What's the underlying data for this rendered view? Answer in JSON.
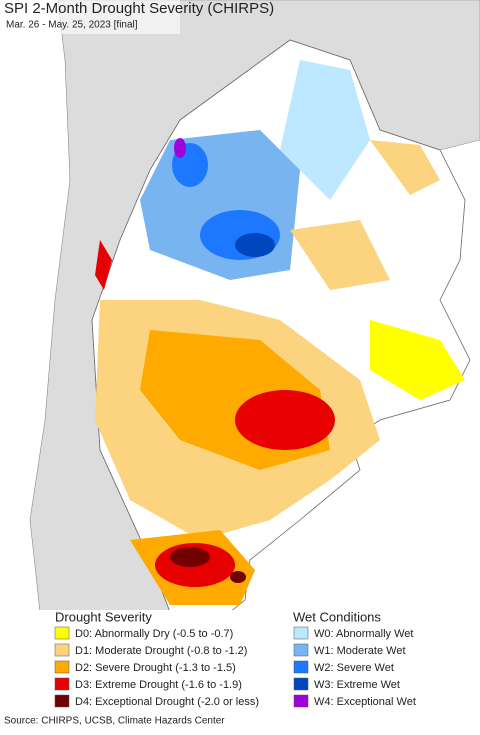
{
  "header": {
    "title": "SPI 2-Month Drought Severity (CHIRPS)",
    "subtitle": "Mar. 26 - May. 25, 2023 [final]"
  },
  "legend": {
    "drought": {
      "title": "Drought Severity",
      "items": [
        {
          "label": "D0: Abnormally Dry (-0.5 to -0.7)",
          "color": "#ffff00"
        },
        {
          "label": "D1: Moderate Drought (-0.8 to -1.2)",
          "color": "#fcd37f"
        },
        {
          "label": "D2: Severe Drought (-1.3 to -1.5)",
          "color": "#ffaa00"
        },
        {
          "label": "D3: Extreme Drought (-1.6 to -1.9)",
          "color": "#e60000"
        },
        {
          "label": "D4: Exceptional Drought (-2.0 or less)",
          "color": "#730000"
        }
      ]
    },
    "wet": {
      "title": "Wet Conditions",
      "items": [
        {
          "label": "W0: Abnormally Wet",
          "color": "#bde8ff"
        },
        {
          "label": "W1: Moderate Wet",
          "color": "#78b4f0"
        },
        {
          "label": "W2: Severe Wet",
          "color": "#1e78ff"
        },
        {
          "label": "W3: Extreme Wet",
          "color": "#0046be"
        },
        {
          "label": "W4: Exceptional Wet",
          "color": "#a000dc"
        }
      ]
    }
  },
  "source": "Source: CHIRPS, UCSB, Climate Hazards Center"
}
